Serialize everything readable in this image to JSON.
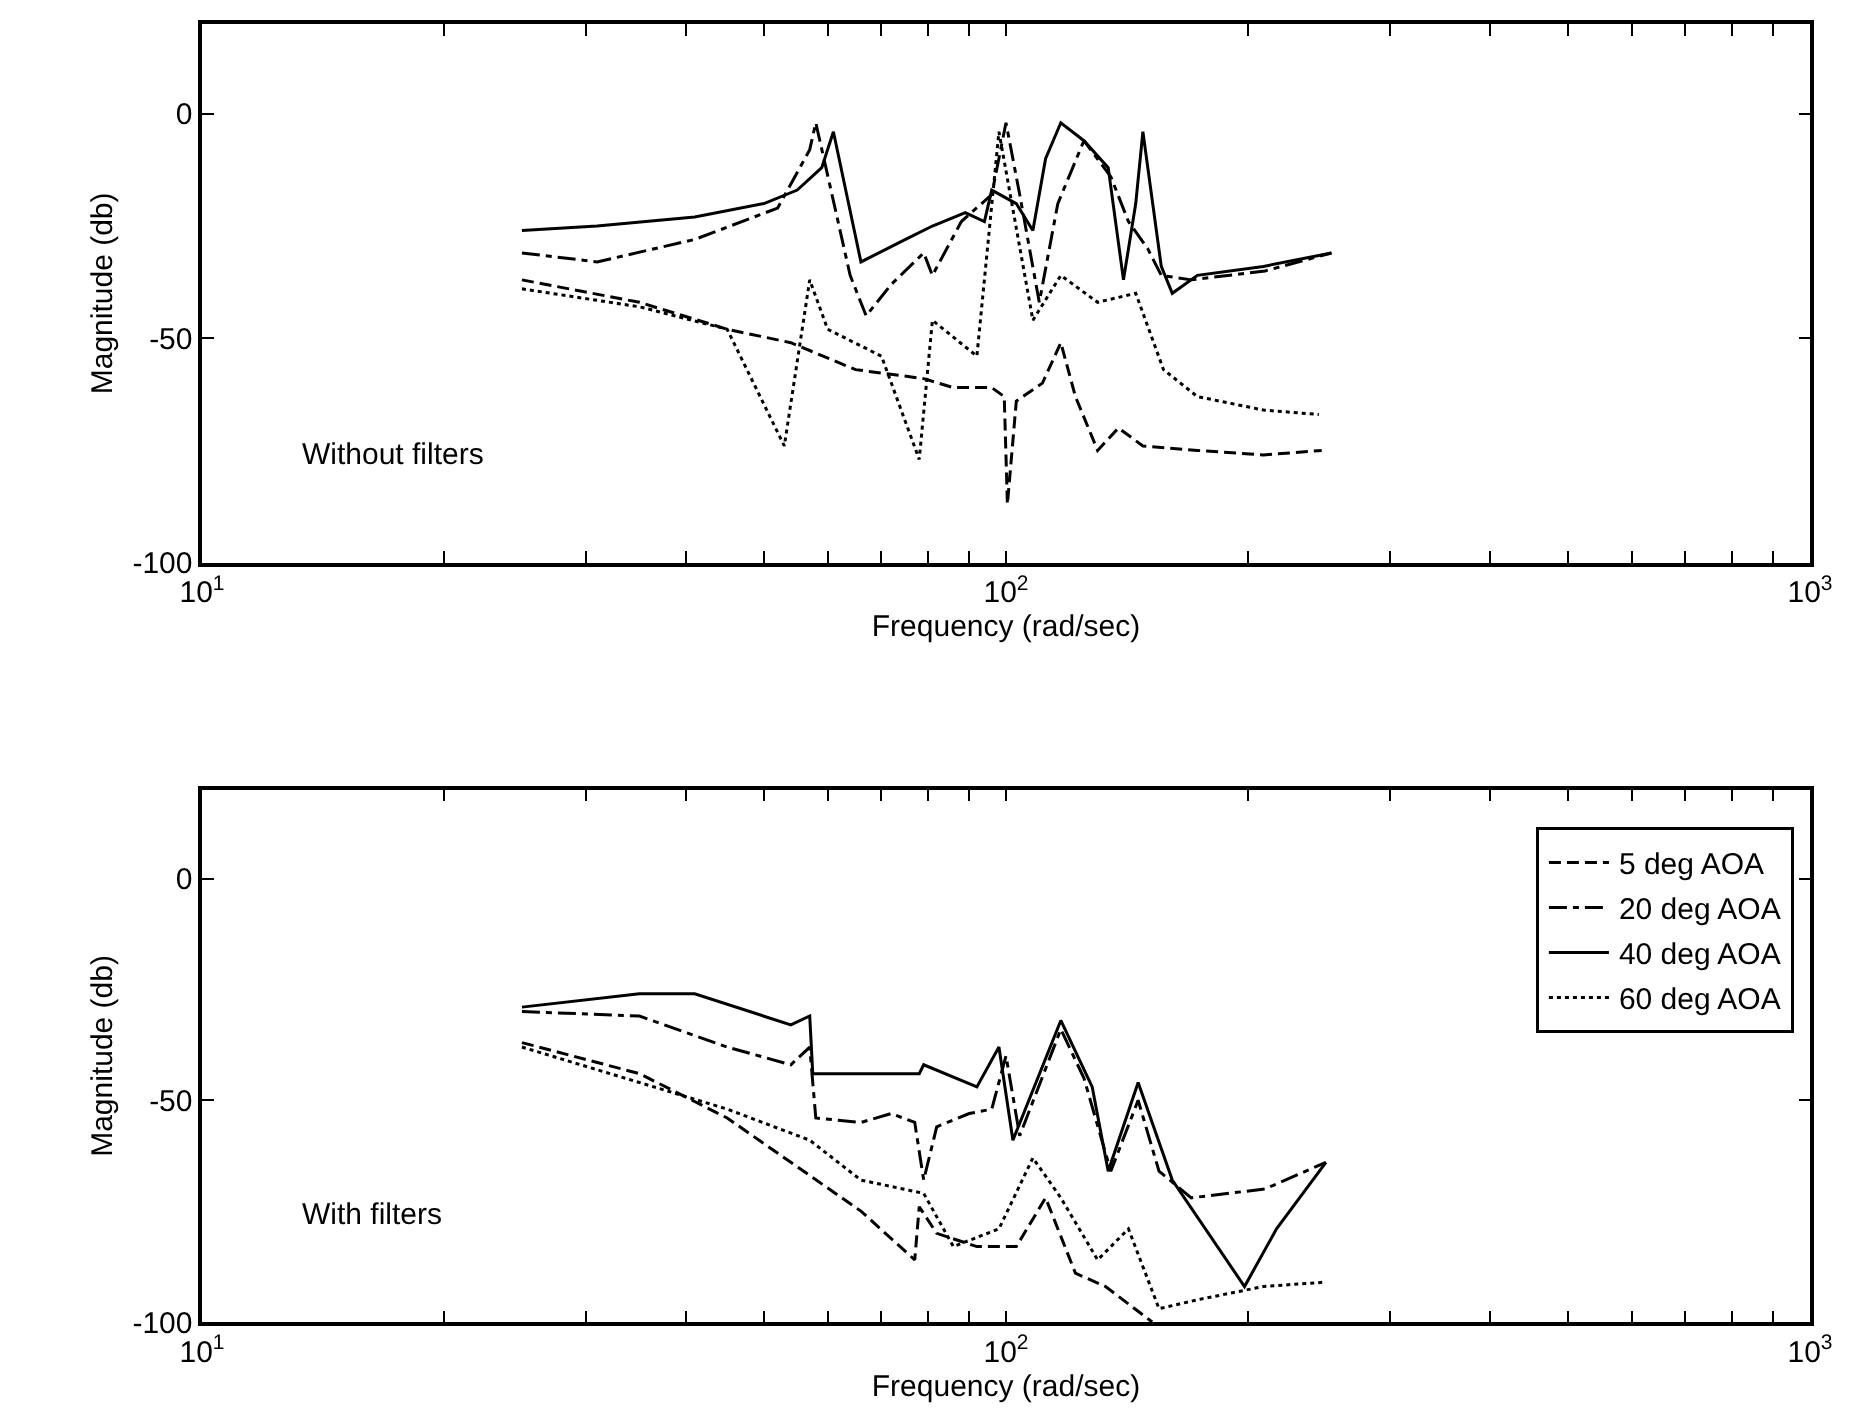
{
  "chart_data": [
    {
      "type": "line",
      "xlabel": "Frequency (rad/sec)",
      "ylabel": "Magnitude (db)",
      "log": "x",
      "grid": false,
      "legend": false,
      "xlim": [
        10,
        1000
      ],
      "xticks": [
        {
          "value": 10,
          "label": "10$^{1}$"
        },
        {
          "value": 20,
          "label": null
        },
        {
          "value": 30,
          "label": null
        },
        {
          "value": 40,
          "label": null
        },
        {
          "value": 50,
          "label": null
        },
        {
          "value": 60,
          "label": null
        },
        {
          "value": 70,
          "label": null
        },
        {
          "value": 80,
          "label": null
        },
        {
          "value": 90,
          "label": null
        },
        {
          "value": 100,
          "label": "10$^{2}$"
        },
        {
          "value": 200,
          "label": null
        },
        {
          "value": 300,
          "label": null
        },
        {
          "value": 400,
          "label": null
        },
        {
          "value": 500,
          "label": null
        },
        {
          "value": 600,
          "label": null
        },
        {
          "value": 700,
          "label": null
        },
        {
          "value": 800,
          "label": null
        },
        {
          "value": 900,
          "label": null
        },
        {
          "value": 1000,
          "label": "10$^{3}$"
        }
      ],
      "ylim": [
        -100,
        20
      ],
      "yticks": [
        0,
        -50,
        -100
      ],
      "annotations": [
        "Without filters"
      ],
      "series": [
        {
          "color": "#000000",
          "line_style": "dashed",
          "x": [
            25,
            35,
            45,
            54,
            65,
            79,
            86,
            96,
            99.5,
            100.4,
            103,
            111,
            117,
            122,
            130,
            138,
            148,
            173,
            209,
            247
          ],
          "values": [
            -37,
            -42,
            -48,
            -51,
            -57,
            -59,
            -61,
            -61,
            -63,
            -87,
            -64,
            -60,
            -51,
            -63,
            -75,
            -70,
            -74,
            -75,
            -76,
            -75
          ]
        },
        {
          "color": "#000000",
          "line_style": "dashdot",
          "x": [
            25,
            31,
            41,
            52,
            57,
            58,
            64,
            67,
            72,
            79,
            81,
            88,
            96,
            100,
            104,
            110,
            116,
            125,
            135,
            142,
            150,
            156,
            170,
            210,
            254
          ],
          "values": [
            -31,
            -33,
            -28,
            -21,
            -8,
            -2,
            -36,
            -45,
            -38,
            -31,
            -36,
            -24,
            -18,
            -2,
            -18,
            -42,
            -20,
            -6,
            -14,
            -24,
            -30,
            -36,
            -37,
            -35,
            -31
          ]
        },
        {
          "color": "#000000",
          "line_style": "solid",
          "x": [
            25,
            31,
            41,
            50,
            55,
            59,
            61,
            66,
            75,
            81,
            89,
            94,
            96,
            103,
            108,
            112,
            117,
            125,
            134,
            140,
            145,
            148,
            156,
            161,
            173,
            209,
            254
          ],
          "values": [
            -26,
            -25,
            -23,
            -20,
            -17,
            -12,
            -4,
            -33,
            -28,
            -25,
            -22,
            -24,
            -17,
            -20,
            -26,
            -10,
            -2,
            -6,
            -12,
            -37,
            -20,
            -4,
            -34,
            -40,
            -36,
            -34,
            -31
          ]
        },
        {
          "color": "#000000",
          "line_style": "dotted",
          "x": [
            25,
            35,
            45,
            53,
            57,
            60,
            70,
            78,
            81,
            92,
            98,
            108,
            117,
            130,
            145,
            157,
            173,
            209,
            245
          ],
          "values": [
            -39,
            -43,
            -48,
            -74,
            -37,
            -48,
            -54,
            -77,
            -46,
            -54,
            -4,
            -46,
            -36,
            -42,
            -40,
            -57,
            -63,
            -66,
            -67
          ]
        }
      ]
    },
    {
      "type": "line",
      "xlabel": "Frequency (rad/sec)",
      "ylabel": "Magnitude (db)",
      "log": "x",
      "grid": false,
      "legend": "top right",
      "xlim": [
        10,
        1000
      ],
      "xticks": [
        {
          "value": 10,
          "label": "10$^{1}$"
        },
        {
          "value": 20,
          "label": null
        },
        {
          "value": 30,
          "label": null
        },
        {
          "value": 40,
          "label": null
        },
        {
          "value": 50,
          "label": null
        },
        {
          "value": 60,
          "label": null
        },
        {
          "value": 70,
          "label": null
        },
        {
          "value": 80,
          "label": null
        },
        {
          "value": 90,
          "label": null
        },
        {
          "value": 100,
          "label": "10$^{2}$"
        },
        {
          "value": 200,
          "label": null
        },
        {
          "value": 300,
          "label": null
        },
        {
          "value": 400,
          "label": null
        },
        {
          "value": 500,
          "label": null
        },
        {
          "value": 600,
          "label": null
        },
        {
          "value": 700,
          "label": null
        },
        {
          "value": 800,
          "label": null
        },
        {
          "value": 900,
          "label": null
        },
        {
          "value": 1000,
          "label": "10$^{3}$"
        }
      ],
      "ylim": [
        -100,
        20
      ],
      "yticks": [
        0,
        -50,
        -100
      ],
      "annotations": [
        "With filters"
      ],
      "series": [
        {
          "name": "5 deg AOA",
          "color": "#000000",
          "line_style": "dashed",
          "x": [
            25,
            35,
            45,
            54,
            66,
            77,
            78,
            82,
            92,
            103,
            112,
            122,
            133,
            152
          ],
          "values": [
            -37,
            -44,
            -54,
            -64,
            -75,
            -86,
            -74,
            -80,
            -83,
            -83,
            -72,
            -89,
            -92,
            -100
          ]
        },
        {
          "name": "20 deg AOA",
          "color": "#000000",
          "line_style": "dashdot",
          "x": [
            25,
            35,
            45,
            54,
            57,
            58,
            66,
            72,
            77,
            79,
            82,
            90,
            96,
            100,
            104,
            117,
            125,
            135,
            146,
            155,
            170,
            210,
            250
          ],
          "values": [
            -30,
            -31,
            -38,
            -42,
            -38,
            -54,
            -55,
            -53,
            -55,
            -68,
            -56,
            -53,
            -52,
            -40,
            -58,
            -34,
            -45,
            -66,
            -50,
            -66,
            -72,
            -70,
            -64
          ]
        },
        {
          "name": "40 deg AOA",
          "color": "#000000",
          "line_style": "solid",
          "x": [
            25,
            35,
            41,
            54,
            57,
            57.5,
            78,
            79,
            92,
            98,
            102,
            117,
            128,
            134,
            146,
            161,
            198,
            217,
            250
          ],
          "values": [
            -29,
            -26,
            -26,
            -33,
            -31,
            -44,
            -44,
            -42,
            -47,
            -38,
            -59,
            -32,
            -47,
            -66,
            -46,
            -68,
            -92,
            -79,
            -64
          ]
        },
        {
          "name": "60 deg AOA",
          "color": "#000000",
          "line_style": "dotted",
          "x": [
            25,
            35,
            45,
            57,
            66,
            79,
            86,
            98,
            108,
            117,
            130,
            142,
            155,
            173,
            209,
            250
          ],
          "values": [
            -38,
            -46,
            -52,
            -59,
            -68,
            -71,
            -83,
            -79,
            -63,
            -72,
            -86,
            -79,
            -97,
            -95,
            -92,
            -91
          ]
        }
      ]
    }
  ]
}
